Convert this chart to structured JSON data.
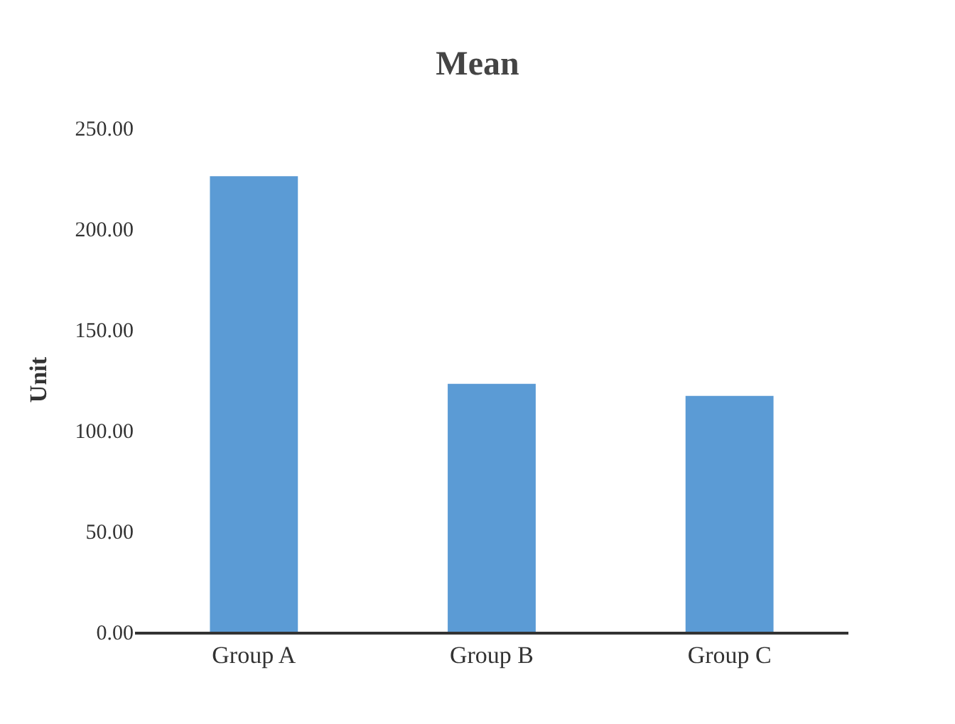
{
  "chart_data": {
    "type": "bar",
    "title": "Mean",
    "ylabel": "Unit",
    "categories": [
      "Group A",
      "Group B",
      "Group C"
    ],
    "values": [
      226,
      123,
      117
    ],
    "color": "#5b9bd5",
    "ylim": [
      0,
      250
    ],
    "yticks": [
      {
        "value": 0,
        "label": "0.00"
      },
      {
        "value": 50,
        "label": "50.00"
      },
      {
        "value": 100,
        "label": "100.00"
      },
      {
        "value": 150,
        "label": "150.00"
      },
      {
        "value": 200,
        "label": "200.00"
      },
      {
        "value": 250,
        "label": "250.00"
      }
    ],
    "legend": false
  }
}
